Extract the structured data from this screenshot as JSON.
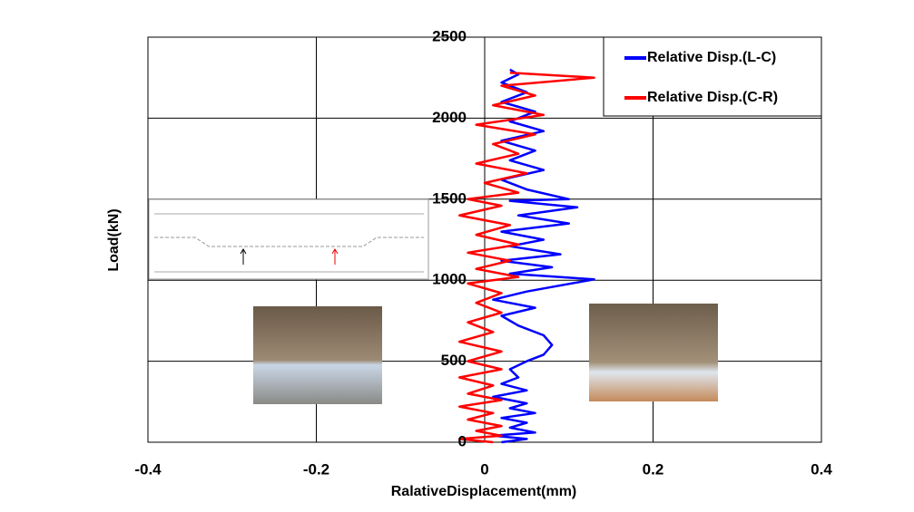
{
  "chart_data": {
    "type": "line",
    "x_label": "RalativeDisplacement(mm)",
    "y_label": "Load(kN)",
    "xlim": [
      -0.4,
      0.4
    ],
    "xticks": [
      -0.4,
      -0.2,
      0,
      0.2,
      0.4
    ],
    "ylim": [
      0,
      2500
    ],
    "yticks": [
      0,
      500,
      1000,
      1500,
      2000,
      2500
    ],
    "grid": true,
    "legend": "upper right",
    "series": [
      {
        "name": "Relative Disp.(L-C)",
        "color": "#0000ff",
        "x": [
          0.02,
          0.05,
          0.01,
          0.06,
          0.03,
          0.05,
          0.02,
          0.06,
          0.03,
          0.05,
          0.01,
          0.05,
          0.02,
          0.04,
          0.03,
          0.05,
          0.07,
          0.08,
          0.07,
          0.04,
          0.02,
          0.06,
          0.01,
          0.05,
          0.13,
          0.03,
          0.08,
          0.02,
          0.09,
          0.03,
          0.07,
          0.02,
          0.1,
          0.04,
          0.11,
          0.03,
          0.1,
          0.05,
          0.02,
          0.07,
          0.03,
          0.06,
          0.02,
          0.07,
          0.03,
          0.06,
          0.02,
          0.05,
          0.02,
          0.04,
          0.03
        ],
        "values": [
          0,
          20,
          40,
          60,
          90,
          120,
          150,
          180,
          210,
          240,
          280,
          320,
          360,
          400,
          450,
          500,
          540,
          600,
          660,
          720,
          780,
          830,
          880,
          930,
          1005,
          1040,
          1080,
          1120,
          1160,
          1210,
          1250,
          1300,
          1350,
          1400,
          1450,
          1490,
          1500,
          1560,
          1620,
          1680,
          1740,
          1800,
          1860,
          1920,
          1980,
          2040,
          2100,
          2160,
          2220,
          2270,
          2300
        ]
      },
      {
        "name": "Relative Disp.(C-R)",
        "color": "#ff0000",
        "x": [
          0.01,
          -0.03,
          0.02,
          -0.01,
          0.02,
          -0.02,
          0.01,
          -0.03,
          0.02,
          -0.02,
          0.01,
          -0.03,
          0.02,
          -0.02,
          0.02,
          -0.03,
          0.01,
          -0.02,
          0.02,
          -0.01,
          0.02,
          -0.02,
          0.04,
          -0.01,
          0.03,
          -0.02,
          0.04,
          -0.01,
          0.03,
          -0.03,
          0.02,
          -0.02,
          0.04,
          0,
          0.05,
          -0.01,
          0.04,
          0.01,
          0.06,
          -0.01,
          0.07,
          0.01,
          0.06,
          0.02,
          0.13,
          0.03
        ],
        "values": [
          0,
          20,
          40,
          70,
          100,
          140,
          180,
          220,
          260,
          300,
          350,
          400,
          450,
          500,
          560,
          620,
          680,
          740,
          800,
          860,
          920,
          980,
          1020,
          1070,
          1120,
          1170,
          1220,
          1280,
          1340,
          1400,
          1460,
          1500,
          1540,
          1600,
          1660,
          1720,
          1780,
          1840,
          1900,
          1960,
          2020,
          2080,
          2140,
          2200,
          2250,
          2280
        ]
      }
    ]
  }
}
